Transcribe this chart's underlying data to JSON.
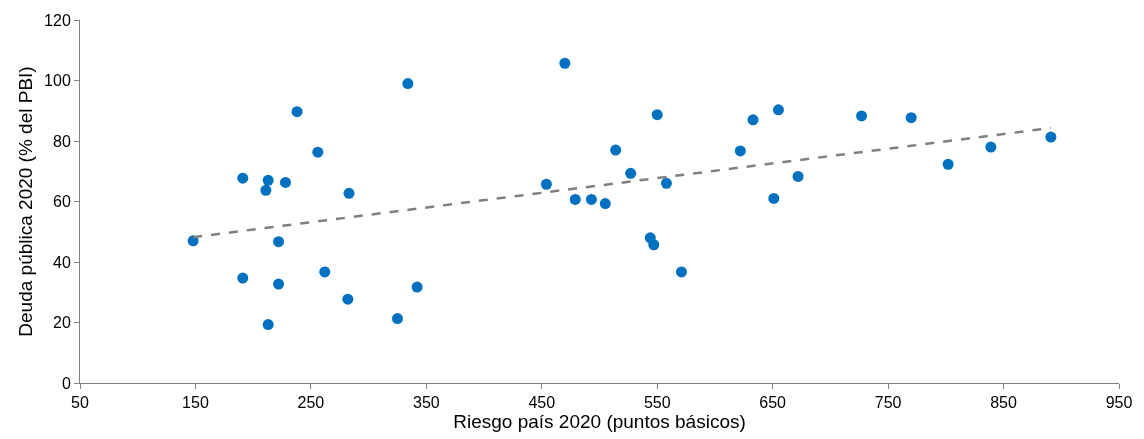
{
  "chart_data": {
    "type": "scatter",
    "xlabel": "Riesgo país 2020 (puntos básicos)",
    "ylabel": "Deuda pública 2020 (% del PBI)",
    "xlim": [
      50,
      950
    ],
    "xticks": [
      50,
      150,
      250,
      350,
      450,
      550,
      650,
      750,
      850,
      950
    ],
    "ylim": [
      0,
      120
    ],
    "yticks": [
      0,
      20,
      40,
      60,
      80,
      100,
      120
    ],
    "grid": false,
    "marker": "circle",
    "series": [
      {
        "color": "#0070c0",
        "x": [
          148,
          191,
          191,
          211,
          213,
          213,
          222,
          222,
          228,
          238,
          256,
          262,
          282,
          283,
          325,
          334,
          342,
          454,
          470,
          479,
          493,
          505,
          514,
          527,
          544,
          547,
          550,
          558,
          571,
          622,
          633,
          651,
          655,
          672,
          727,
          770,
          802,
          839,
          891
        ],
        "values": [
          47,
          67.7,
          34.7,
          63.7,
          67,
          19.3,
          46.7,
          32.7,
          66.3,
          89.7,
          76.3,
          36.7,
          27.7,
          62.7,
          21.3,
          99,
          31.7,
          65.7,
          105.7,
          60.7,
          60.7,
          59.3,
          77,
          69.3,
          48,
          45.7,
          88.7,
          66,
          36.7,
          76.7,
          87,
          61,
          90.3,
          68.3,
          88.3,
          87.7,
          72.3,
          78,
          81.3
        ]
      },
      {
        "type": "line",
        "color": "#808080",
        "line_style": "dashed",
        "marker": "none",
        "x": [
          148,
          891
        ],
        "values": [
          48.2,
          84.3
        ]
      }
    ]
  }
}
